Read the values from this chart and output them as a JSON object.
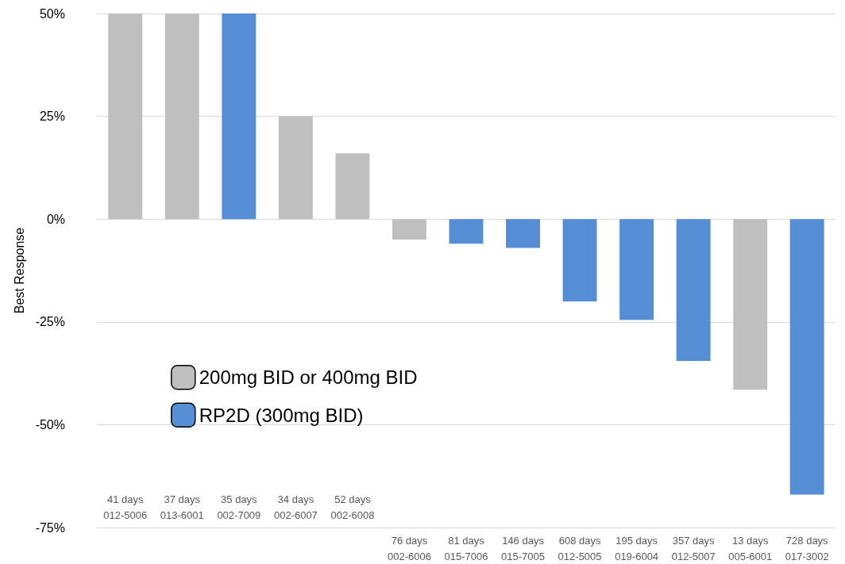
{
  "chart_data": {
    "type": "bar",
    "ylabel": "Best Response",
    "categories": [
      "41 days\n012-5006",
      "37 days\n013-6001",
      "35 days\n002-7009",
      "34 days\n002-6007",
      "52 days\n002-6008",
      "76 days\n002-6006",
      "81 days\n015-7006",
      "146 days\n015-7005",
      "608 days\n012-5005",
      "195 days\n019-6004",
      "357 days\n012-5007",
      "13 days\n005-6001",
      "728 days\n017-3002"
    ],
    "series": [
      {
        "name": "200mg BID or 400mg BID",
        "color": "#bfbfbf",
        "values": [
          50,
          50,
          null,
          25,
          16,
          -5,
          null,
          null,
          null,
          null,
          null,
          -41.5,
          null
        ]
      },
      {
        "name": "RP2D (300mg BID)",
        "color": "#558ed5",
        "values": [
          null,
          null,
          50,
          null,
          null,
          null,
          -6,
          -7,
          -20,
          -24.5,
          -34.5,
          null,
          -67
        ]
      }
    ],
    "ylim": [
      -75,
      50
    ],
    "yticks": [
      {
        "value": -75,
        "label": "-75%"
      },
      {
        "value": -50,
        "label": "-50%"
      },
      {
        "value": -25,
        "label": "-25%"
      },
      {
        "value": 0,
        "label": "0%"
      },
      {
        "value": 25,
        "label": "25%"
      },
      {
        "value": 50,
        "label": "50%"
      }
    ],
    "grid": "y",
    "legend": "left",
    "stacked": true
  }
}
